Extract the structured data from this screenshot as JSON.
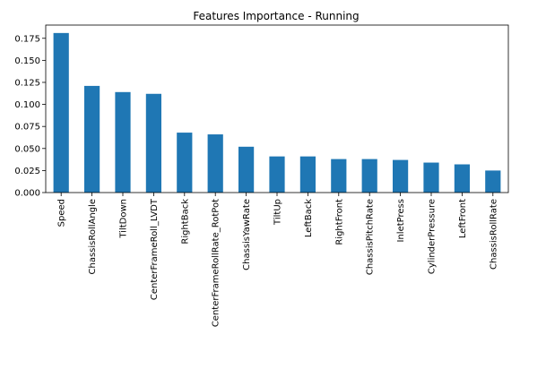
{
  "chart_data": {
    "type": "bar",
    "title": "Features Importance - Running",
    "xlabel": "",
    "ylabel": "",
    "categories": [
      "Speed",
      "ChassisRollAngle",
      "TiltDown",
      "CenterFrameRoll_LVDT",
      "RightBack",
      "CenterFrameRollRate_RotPot",
      "ChassisYawRate",
      "TiltUp",
      "LeftBack",
      "RightFront",
      "ChassisPitchRate",
      "InletPress",
      "CylinderPressure",
      "LeftFront",
      "ChassisRollRate"
    ],
    "values": [
      0.181,
      0.121,
      0.114,
      0.112,
      0.068,
      0.066,
      0.052,
      0.041,
      0.041,
      0.038,
      0.038,
      0.037,
      0.034,
      0.032,
      0.025
    ],
    "ylim": [
      0,
      0.19
    ],
    "yticks": [
      "0.000",
      "0.025",
      "0.050",
      "0.075",
      "0.100",
      "0.125",
      "0.150",
      "0.175"
    ],
    "bar_color": "#1f77b4",
    "grid": false,
    "legend": "none"
  }
}
